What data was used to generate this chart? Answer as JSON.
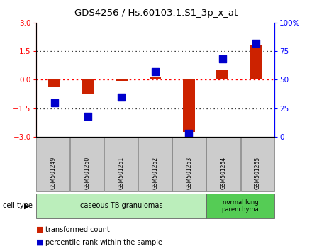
{
  "title": "GDS4256 / Hs.60103.1.S1_3p_x_at",
  "samples": [
    "GSM501249",
    "GSM501250",
    "GSM501251",
    "GSM501252",
    "GSM501253",
    "GSM501254",
    "GSM501255"
  ],
  "red_values": [
    -0.35,
    -0.75,
    -0.05,
    0.12,
    -2.75,
    0.5,
    1.85
  ],
  "blue_percentiles": [
    30,
    18,
    35,
    57,
    3,
    68,
    82
  ],
  "ylim_left": [
    -3,
    3
  ],
  "ylim_right": [
    0,
    100
  ],
  "left_yticks": [
    -3,
    -1.5,
    0,
    1.5,
    3
  ],
  "right_yticks": [
    0,
    25,
    50,
    75,
    100
  ],
  "right_yticklabels": [
    "0",
    "25",
    "50",
    "75",
    "100%"
  ],
  "bar_color": "#cc2200",
  "dot_color": "#0000cc",
  "bar_width": 0.35,
  "dot_size": 45,
  "cell_type_groups": [
    {
      "label": "caseous TB granulomas",
      "n_samples": 5,
      "color": "#bbeebb"
    },
    {
      "label": "normal lung\nparenchyma",
      "n_samples": 2,
      "color": "#55cc55"
    }
  ],
  "cell_type_label": "cell type",
  "legend_red_label": "transformed count",
  "legend_blue_label": "percentile rank within the sample",
  "bg_color": "#ffffff",
  "plot_bg": "#ffffff",
  "label_box_color": "#cccccc",
  "label_box_edge": "#888888"
}
